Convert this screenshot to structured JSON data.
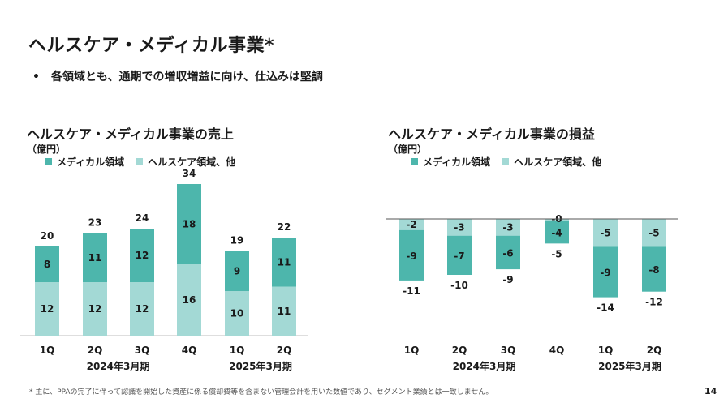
{
  "page": {
    "title": "ヘルスケア・メディカル事業*",
    "bullet": "各領域とも、通期での増収増益に向け、仕込みは堅調",
    "footnote": "* 主に、PPAの完了に伴って認識を開始した資産に係る償却費等を含まない管理会計を用いた数値であり、セグメント業績とは一致しません。",
    "page_number": "14"
  },
  "colors": {
    "medical": "#4db6ac",
    "healthcare": "#a3d9d5",
    "text": "#1a1a1a"
  },
  "chart_data": [
    {
      "type": "bar",
      "stacked": true,
      "title": "ヘルスケア・メディカル事業の売上",
      "unit": "（億円）",
      "legend": [
        "メディカル領域",
        "ヘルスケア領域、他"
      ],
      "categories": [
        "1Q",
        "2Q",
        "3Q",
        "4Q",
        "1Q",
        "2Q"
      ],
      "groups": [
        {
          "label": "2024年3月期",
          "start": 0,
          "end": 3
        },
        {
          "label": "2025年3月期",
          "start": 4,
          "end": 5
        }
      ],
      "series": [
        {
          "name": "ヘルスケア領域、他",
          "values": [
            12,
            12,
            12,
            16,
            10,
            11
          ],
          "labels": [
            "12",
            "12",
            "12",
            "16",
            "10",
            "11"
          ]
        },
        {
          "name": "メディカル領域",
          "values": [
            8,
            11,
            12,
            18,
            9,
            11
          ],
          "labels": [
            "8",
            "11",
            "12",
            "18",
            "9",
            "11"
          ]
        }
      ],
      "totals": [
        "20",
        "23",
        "24",
        "34",
        "19",
        "22"
      ],
      "ylim": [
        0,
        36
      ]
    },
    {
      "type": "bar",
      "stacked": true,
      "title": "ヘルスケア・メディカル事業の損益",
      "unit": "（億円）",
      "legend": [
        "メディカル領域",
        "ヘルスケア領域、他"
      ],
      "categories": [
        "1Q",
        "2Q",
        "3Q",
        "4Q",
        "1Q",
        "2Q"
      ],
      "groups": [
        {
          "label": "2024年3月期",
          "start": 0,
          "end": 3
        },
        {
          "label": "2025年3月期",
          "start": 4,
          "end": 5
        }
      ],
      "series": [
        {
          "name": "ヘルスケア領域、他",
          "values": [
            -2,
            -3,
            -3,
            -0.4,
            -5,
            -5
          ],
          "labels": [
            "-2",
            "-3",
            "-3",
            "-0",
            "-5",
            "-5"
          ]
        },
        {
          "name": "メディカル領域",
          "values": [
            -9,
            -7,
            -6,
            -4,
            -9,
            -8
          ],
          "labels": [
            "-9",
            "-7",
            "-6",
            "-4",
            "-9",
            "-8"
          ]
        }
      ],
      "totals": [
        "-11",
        "-10",
        "-9",
        "-5",
        "-14",
        "-12"
      ],
      "ylim": [
        -16,
        0
      ]
    }
  ]
}
